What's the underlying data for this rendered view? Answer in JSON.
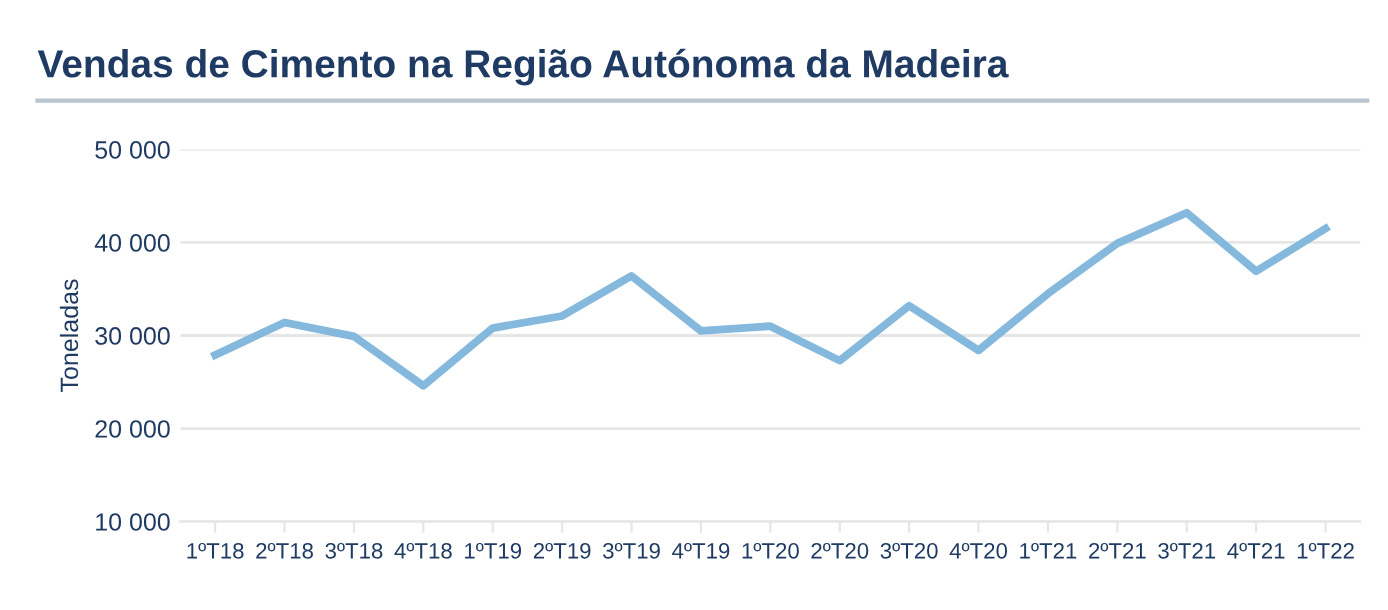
{
  "chart_data": {
    "type": "line",
    "title": "Vendas de Cimento na Região Autónoma da Madeira",
    "ylabel": "Toneladas",
    "categories": [
      "1ºT18",
      "2ºT18",
      "3ºT18",
      "4ºT18",
      "1ºT19",
      "2ºT19",
      "3ºT19",
      "4ºT19",
      "1ºT20",
      "2ºT20",
      "3ºT20",
      "4ºT20",
      "1ºT21",
      "2ºT21",
      "3ºT21",
      "4ºT21",
      "1ºT22"
    ],
    "series": [
      {
        "color": "#85b8dd",
        "values": [
          27900,
          31400,
          29900,
          24600,
          30800,
          32100,
          36400,
          30500,
          31000,
          27300,
          33200,
          28400,
          34500,
          39900,
          43200,
          36900,
          41500
        ]
      }
    ],
    "ylim": [
      10000,
      50000
    ],
    "yticks": [
      {
        "value": 10000,
        "label": "10 000"
      },
      {
        "value": 20000,
        "label": "20 000"
      },
      {
        "value": 30000,
        "label": "30 000"
      },
      {
        "value": 40000,
        "label": "40 000"
      },
      {
        "value": 50000,
        "label": "50 000"
      }
    ],
    "grid": "y",
    "marker": "none",
    "line_style": "solid"
  }
}
